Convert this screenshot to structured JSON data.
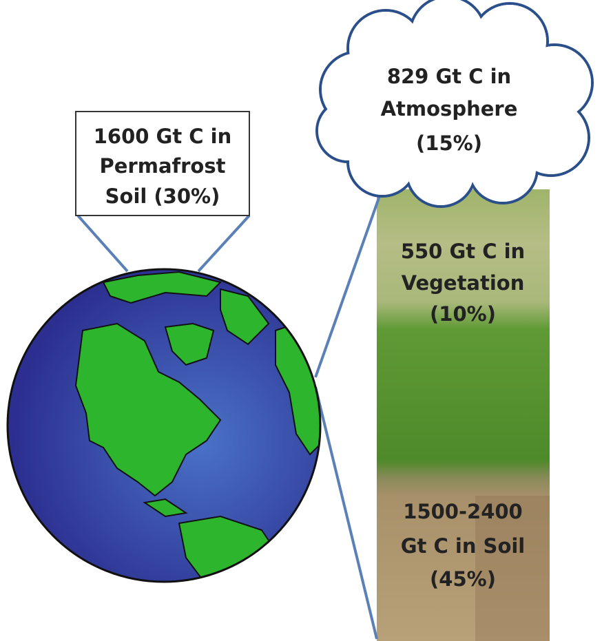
{
  "permafrost": {
    "lines": [
      "1600 Gt C in",
      "Permafrost",
      "Soil (30%)"
    ]
  },
  "atmosphere": {
    "lines": [
      "829 Gt C in",
      "Atmosphere",
      "(15%)"
    ]
  },
  "vegetation": {
    "lines": [
      "550 Gt C in",
      "Vegetation",
      "(10%)"
    ]
  },
  "soil": {
    "lines": [
      "1500-2400",
      "Gt C in Soil",
      "(45%)"
    ]
  }
}
